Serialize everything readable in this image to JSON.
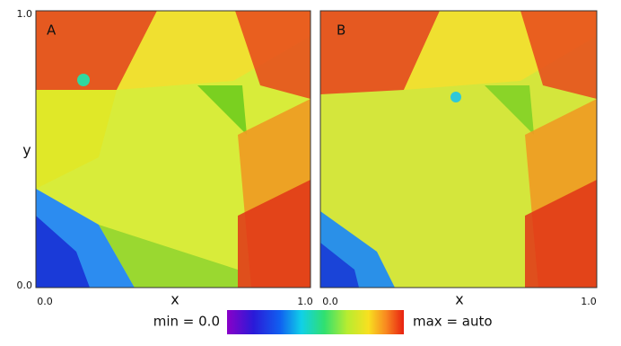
{
  "panels": [
    {
      "label": "A",
      "x_label": "x",
      "x_ticks": [
        "0.0",
        "1.0"
      ]
    },
    {
      "label": "B",
      "x_label": "x",
      "x_ticks": [
        "0.0",
        "1.0"
      ]
    }
  ],
  "y_axis": {
    "label": "y",
    "ticks": [
      "0.0",
      "1.0"
    ]
  },
  "colorbar": {
    "min_label": "min = 0.0",
    "max_label": "max = auto"
  }
}
